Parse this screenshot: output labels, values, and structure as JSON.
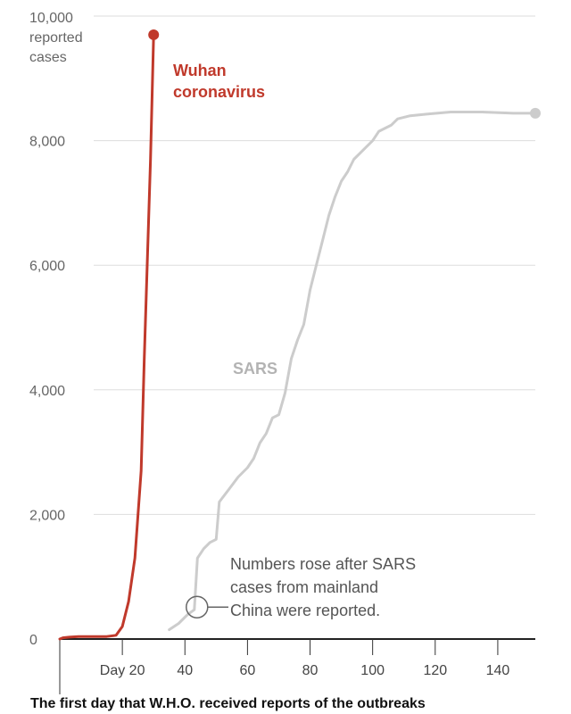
{
  "chart_data": {
    "type": "line",
    "ylabel_lines": [
      "10,000",
      "reported",
      "cases"
    ],
    "yticks": [
      {
        "value": 0,
        "label": "0"
      },
      {
        "value": 2000,
        "label": "2,000"
      },
      {
        "value": 4000,
        "label": "4,000"
      },
      {
        "value": 6000,
        "label": "6,000"
      },
      {
        "value": 8000,
        "label": "8,000"
      }
    ],
    "xticks": [
      {
        "value": 20,
        "label": "Day 20"
      },
      {
        "value": 40,
        "label": "40"
      },
      {
        "value": 60,
        "label": "60"
      },
      {
        "value": 80,
        "label": "80"
      },
      {
        "value": 100,
        "label": "100"
      },
      {
        "value": 120,
        "label": "120"
      },
      {
        "value": 140,
        "label": "140"
      }
    ],
    "xlim": [
      0,
      152
    ],
    "ylim": [
      0,
      10000
    ],
    "grid": true,
    "series": [
      {
        "name": "Wuhan coronavirus",
        "label_lines": [
          "Wuhan",
          "coronavirus"
        ],
        "color": "#c0392b",
        "end_marker": true,
        "points": [
          [
            0,
            0
          ],
          [
            1,
            20
          ],
          [
            3,
            30
          ],
          [
            6,
            40
          ],
          [
            10,
            40
          ],
          [
            15,
            40
          ],
          [
            18,
            60
          ],
          [
            20,
            200
          ],
          [
            22,
            600
          ],
          [
            24,
            1300
          ],
          [
            26,
            2700
          ],
          [
            27,
            4500
          ],
          [
            28,
            6100
          ],
          [
            29,
            7700
          ],
          [
            30,
            9700
          ]
        ]
      },
      {
        "name": "SARS",
        "label_lines": [
          "SARS"
        ],
        "color": "#cccccc",
        "end_marker": true,
        "points": [
          [
            35,
            150
          ],
          [
            38,
            250
          ],
          [
            41,
            400
          ],
          [
            43,
            470
          ],
          [
            44,
            1300
          ],
          [
            46,
            1450
          ],
          [
            48,
            1550
          ],
          [
            50,
            1600
          ],
          [
            51,
            2200
          ],
          [
            54,
            2400
          ],
          [
            57,
            2600
          ],
          [
            60,
            2750
          ],
          [
            62,
            2900
          ],
          [
            64,
            3150
          ],
          [
            66,
            3300
          ],
          [
            68,
            3550
          ],
          [
            70,
            3600
          ],
          [
            72,
            3950
          ],
          [
            74,
            4500
          ],
          [
            76,
            4800
          ],
          [
            78,
            5050
          ],
          [
            80,
            5600
          ],
          [
            82,
            6000
          ],
          [
            84,
            6400
          ],
          [
            86,
            6800
          ],
          [
            88,
            7100
          ],
          [
            90,
            7350
          ],
          [
            92,
            7500
          ],
          [
            94,
            7700
          ],
          [
            96,
            7800
          ],
          [
            100,
            8000
          ],
          [
            102,
            8150
          ],
          [
            106,
            8250
          ],
          [
            108,
            8350
          ],
          [
            112,
            8400
          ],
          [
            118,
            8430
          ],
          [
            125,
            8460
          ],
          [
            135,
            8460
          ],
          [
            145,
            8440
          ],
          [
            152,
            8440
          ]
        ]
      }
    ],
    "annotation": {
      "lines": [
        "Numbers rose after SARS",
        "cases from mainland",
        "China were reported."
      ],
      "target": [
        43,
        470
      ]
    }
  },
  "footer_text": "The first day that W.H.O. received reports of the outbreaks"
}
